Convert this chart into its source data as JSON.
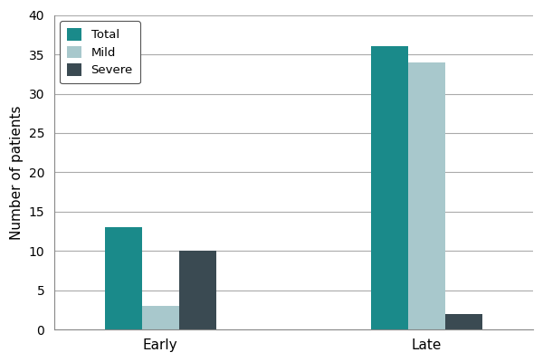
{
  "groups": [
    "Early",
    "Late"
  ],
  "series": {
    "Total": [
      13,
      36
    ],
    "Mild": [
      3,
      34
    ],
    "Severe": [
      10,
      2
    ]
  },
  "colors": {
    "Total": "#1a8a8a",
    "Mild": "#a8c8cc",
    "Severe": "#3a4a52"
  },
  "ylabel": "Number of patients",
  "yticks": [
    0,
    5,
    10,
    15,
    20,
    25,
    30,
    35,
    40
  ],
  "ylim": [
    0,
    40
  ],
  "legend_labels": [
    "Total",
    "Mild",
    "Severe"
  ],
  "bar_width": 0.28,
  "group_centers": [
    1.0,
    3.0
  ],
  "xlim": [
    0.2,
    3.8
  ],
  "background_color": "#ffffff",
  "grid_color": "#aaaaaa"
}
